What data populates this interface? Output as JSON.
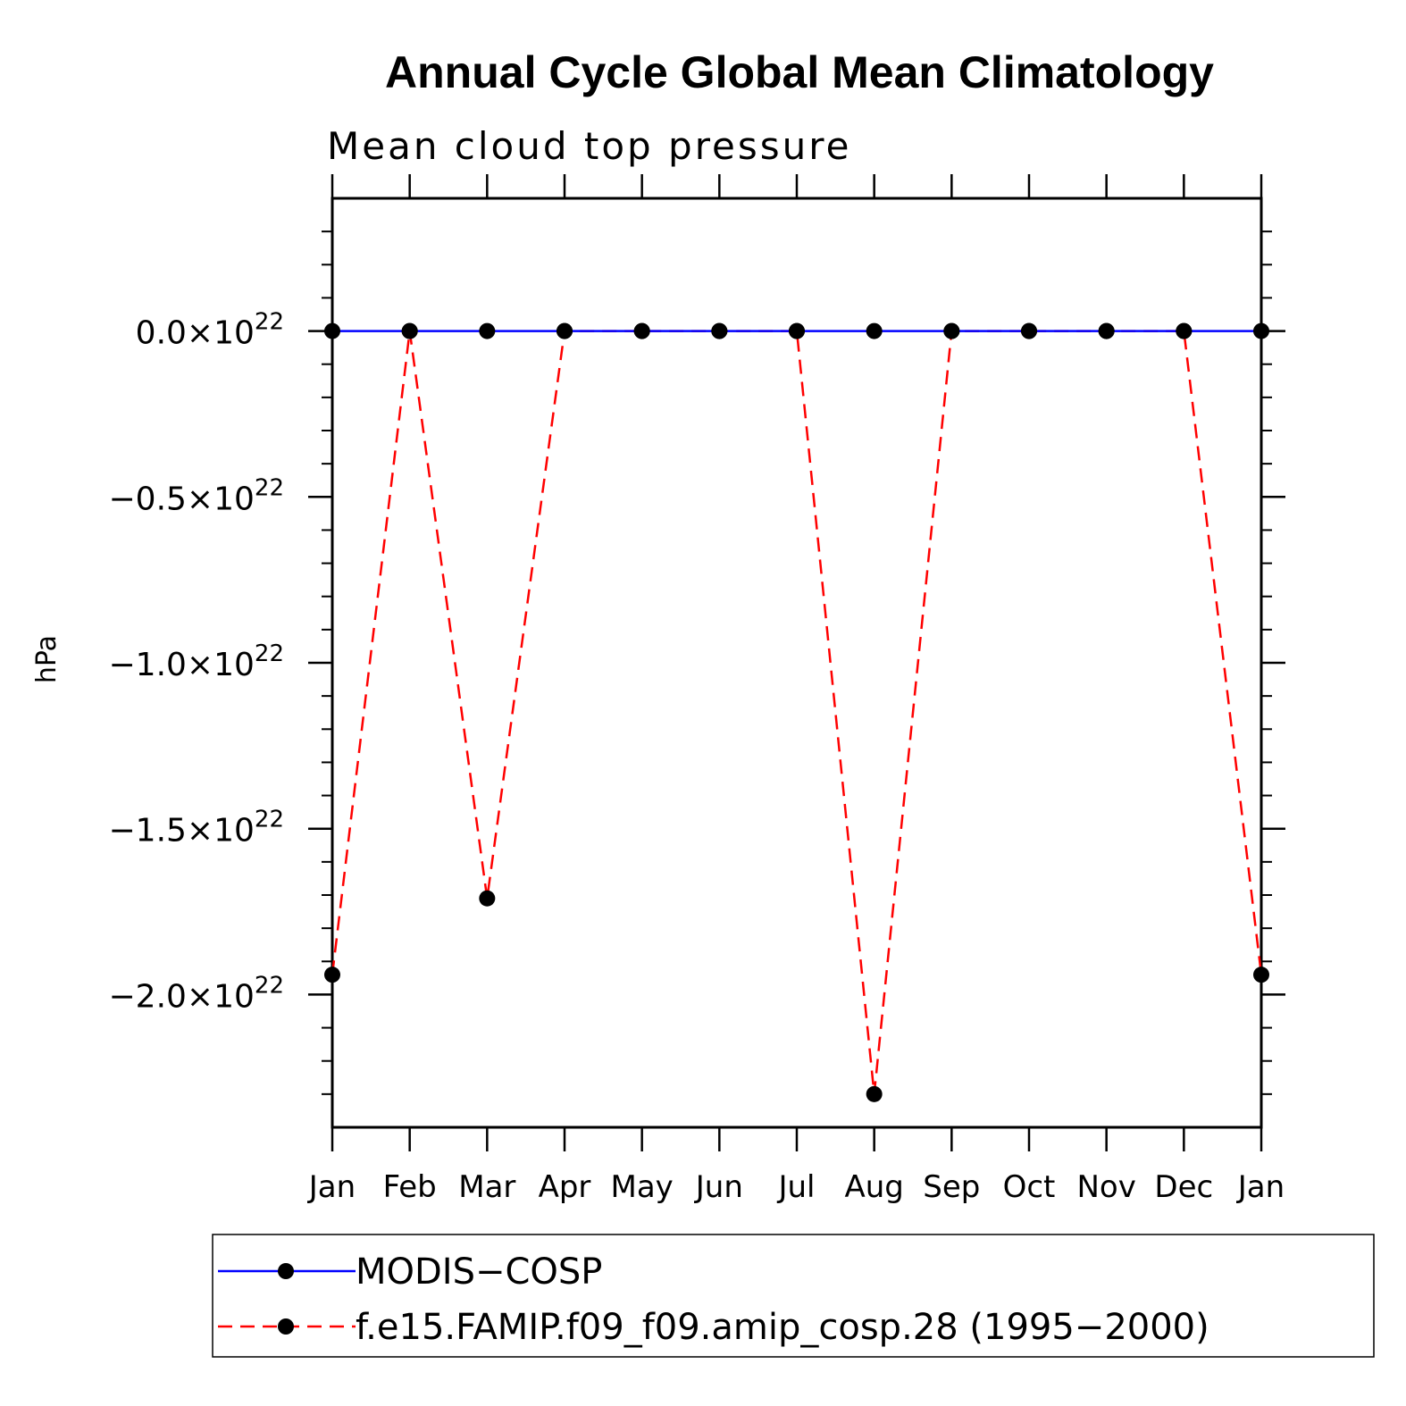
{
  "chart_data": {
    "type": "line",
    "title": "Annual Cycle Global Mean Climatology",
    "subtitle": "Mean cloud top pressure",
    "ylabel": "hPa",
    "xlabel": "",
    "categories": [
      "Jan",
      "Feb",
      "Mar",
      "Apr",
      "May",
      "Jun",
      "Jul",
      "Aug",
      "Sep",
      "Oct",
      "Nov",
      "Dec",
      "Jan"
    ],
    "ylim": [
      -2.4e+22,
      4e+21
    ],
    "yticks": [
      0,
      -5e+21,
      -1e+22,
      -1.5e+22,
      -2e+22
    ],
    "ytick_labels": [
      {
        "mantissa": "0.0",
        "exp": "22"
      },
      {
        "mantissa": "−0.5",
        "exp": "22"
      },
      {
        "mantissa": "−1.0",
        "exp": "22"
      },
      {
        "mantissa": "−1.5",
        "exp": "22"
      },
      {
        "mantissa": "−2.0",
        "exp": "22"
      }
    ],
    "series": [
      {
        "name": "MODIS−COSP",
        "color": "#0000ff",
        "dash": "solid",
        "values": [
          0,
          0,
          0,
          0,
          0,
          0,
          0,
          0,
          0,
          0,
          0,
          0,
          0
        ]
      },
      {
        "name": "f.e15.FAMIP.f09_f09.amip_cosp.28 (1995−2000)",
        "color": "#ff0000",
        "dash": "dashed",
        "values": [
          -1.94e+22,
          0,
          -1.71e+22,
          0,
          0,
          0,
          0,
          -2.3e+22,
          0,
          0,
          0,
          0,
          -1.94e+22
        ]
      }
    ],
    "legend_position": "bottom"
  }
}
